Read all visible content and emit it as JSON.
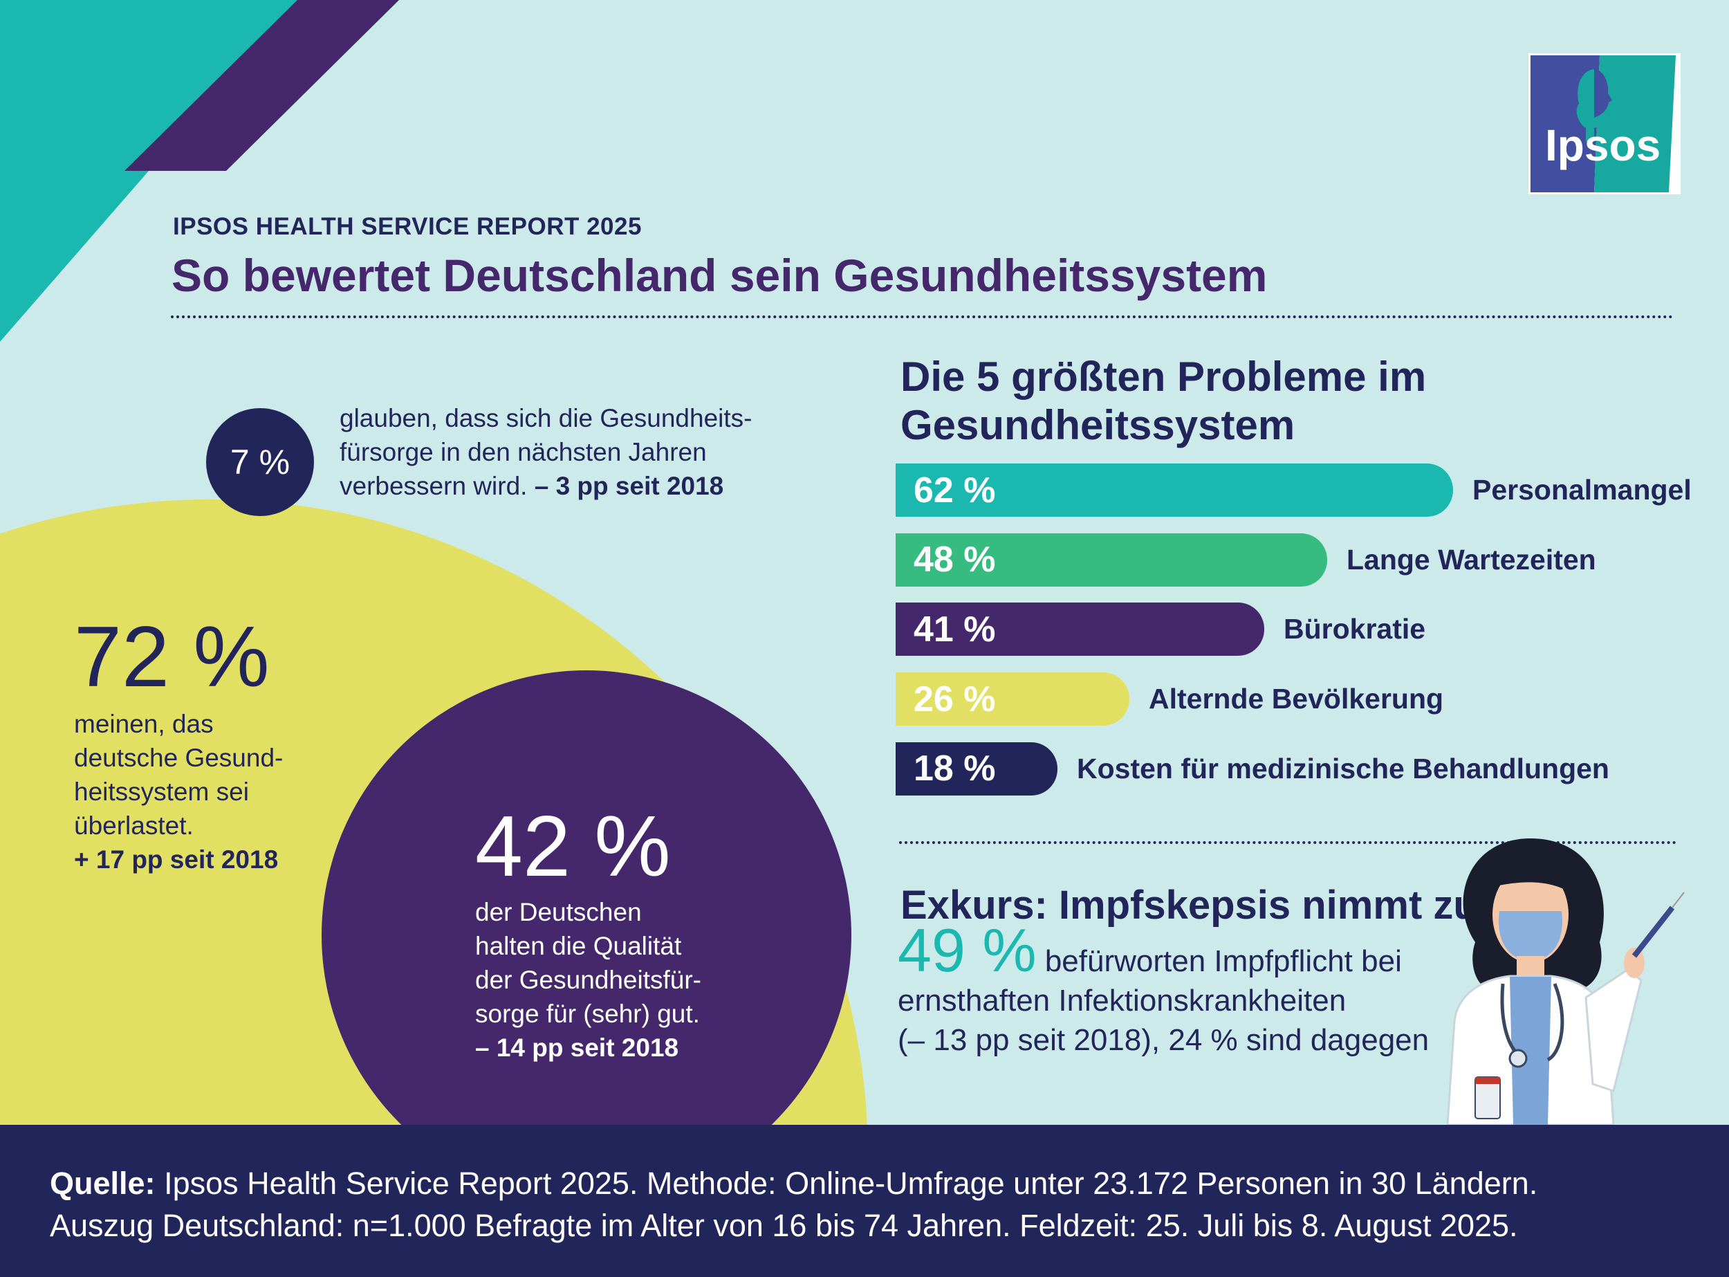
{
  "header": {
    "kicker": "IPSOS HEALTH SERVICE REPORT 2025",
    "title": "So bewertet Deutschland sein Gesundheitssystem",
    "logo_text": "Ipsos"
  },
  "stat_7": {
    "value": "7 %",
    "text": "glauben, dass sich die Gesundheits-fürsorge in den nächsten Jahren verbessern wird.",
    "change": "– 3 pp seit 2018"
  },
  "stat_72": {
    "value": "72 %",
    "lines": [
      "meinen, das",
      "deutsche Gesund-",
      "heitssystem sei",
      "überlastet."
    ],
    "change": "+ 17 pp seit 2018"
  },
  "stat_42": {
    "value": "42 %",
    "lines": [
      "der Deutschen",
      "halten die Qualität",
      "der Gesundheitsfür-",
      "sorge für (sehr) gut."
    ],
    "change": "– 14 pp seit 2018"
  },
  "chart_data": {
    "type": "bar",
    "orientation": "horizontal",
    "title": "Die 5 größten Probleme im Gesundheitssystem",
    "categories": [
      "Personalmangel",
      "Lange Wartezeiten",
      "Bürokratie",
      "Alternde Bevölkerung",
      "Kosten für medizinische Behandlungen"
    ],
    "values": [
      62,
      48,
      41,
      26,
      18
    ],
    "value_labels": [
      "62 %",
      "48 %",
      "41 %",
      "26 %",
      "18 %"
    ],
    "colors": [
      "#1bb8b0",
      "#36bb80",
      "#44286b",
      "#e2e062",
      "#22255a"
    ],
    "grid": false
  },
  "excursus": {
    "title": "Exkurs: Impfskepsis nimmt zu",
    "value": "49 %",
    "text1": "befürworten Impfpflicht bei",
    "text2": "ernsthaften Infektionskrankheiten",
    "text3": "(– 13 pp seit 2018), 24 % sind dagegen"
  },
  "footer": {
    "source_label": "Quelle:",
    "line1": "Ipsos Health Service Report 2025. Methode: Online-Umfrage unter 23.172 Personen in 30 Ländern.",
    "line2": "Auszug Deutschland: n=1.000 Befragte im Alter von 16 bis 74 Jahren. Feldzeit: 25. Juli bis 8. August 2025."
  },
  "colors": {
    "background": "#cdeaea",
    "navy": "#22255a",
    "purple": "#44286b",
    "teal": "#1bb8b0",
    "yellow": "#e2e062"
  }
}
